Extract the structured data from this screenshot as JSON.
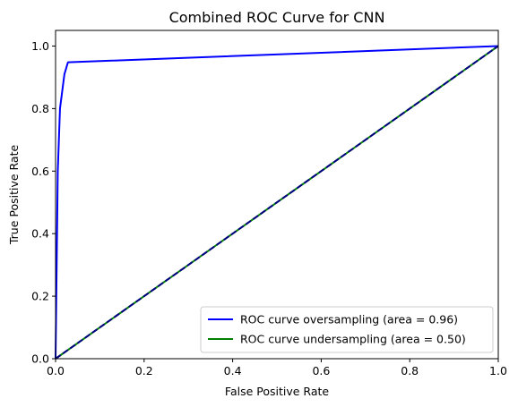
{
  "chart_data": {
    "type": "line",
    "title": "Combined ROC Curve for CNN",
    "xlabel": "False Positive Rate",
    "ylabel": "True Positive Rate",
    "xlim": [
      0.0,
      1.0
    ],
    "ylim": [
      0.0,
      1.05
    ],
    "xticks": [
      "0.0",
      "0.2",
      "0.4",
      "0.6",
      "0.8",
      "1.0"
    ],
    "yticks": [
      "0.0",
      "0.2",
      "0.4",
      "0.6",
      "0.8",
      "1.0"
    ],
    "grid": false,
    "legend_position": "lower-right",
    "series": [
      {
        "name": "ROC curve oversampling (area = 0.96)",
        "color": "#0000ff",
        "style": "solid",
        "x": [
          0.0,
          0.005,
          0.01,
          0.02,
          0.028,
          1.0
        ],
        "y": [
          0.0,
          0.6,
          0.8,
          0.91,
          0.948,
          1.0
        ]
      },
      {
        "name": "ROC curve undersampling (area = 0.50)",
        "color": "#008000",
        "style": "solid",
        "x": [
          0.0,
          1.0
        ],
        "y": [
          0.0,
          1.0
        ]
      },
      {
        "name": "",
        "color": "#000080",
        "style": "dashed",
        "x": [
          0.0,
          1.0
        ],
        "y": [
          0.0,
          1.0
        ]
      }
    ]
  }
}
